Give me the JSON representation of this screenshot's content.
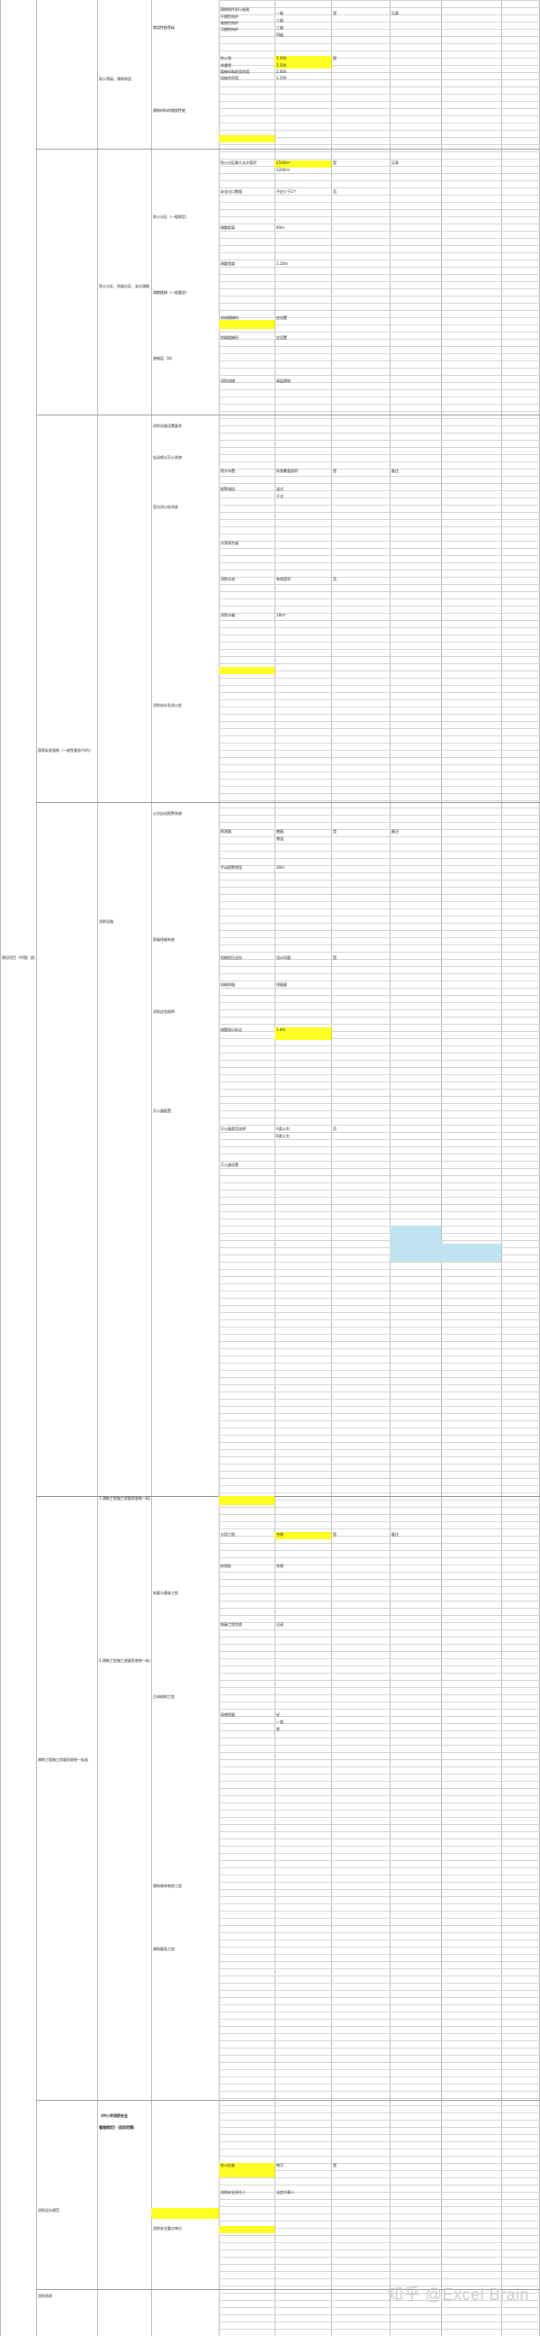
{
  "watermark": "知乎 @Excel Brain",
  "highlight_color": "#ffff24",
  "highlight_blue": "#bfe3ef",
  "col0": [
    {
      "text": "建设项目（中国）部分建筑",
      "row": 1060
    }
  ],
  "col1": [
    {
      "text": "国家标准强制（一般性要求/节约）",
      "row": 830
    },
    {
      "text": "建筑工程施工质量验收统一标准",
      "row": 1950
    },
    {
      "text": "消防设计规范",
      "row": 2450
    },
    {
      "text": "消防验收",
      "row": 2545
    }
  ],
  "col2": [
    {
      "text": "耐火等级、建筑构造",
      "row": 85
    },
    {
      "text": "防火分区、防烟分区、安全疏散",
      "row": 315
    },
    {
      "text": "消防设施",
      "row": 1020
    },
    {
      "text": "1 建筑工程施工质量验收统一标准",
      "row": 1660
    },
    {
      "text": "2 建筑工程施工质量验收统一标准",
      "row": 1840
    },
    {
      "text": "《中小学消防安全",
      "row": 2345
    },
    {
      "text": "管理规定》（适用范围）",
      "row": 2358
    }
  ],
  "col3": [
    {
      "text": "燃烧性能等级",
      "row": 28
    },
    {
      "text": "建筑材料的燃烧性能",
      "row": 120
    },
    {
      "text": "防火分区（一般规定）",
      "row": 238
    },
    {
      "text": "疏散楼梯（一般要求）",
      "row": 322
    },
    {
      "text": "避难层（间）",
      "row": 395
    },
    {
      "text": "消防设施设置要求",
      "row": 470
    },
    {
      "text": "自动喷水灭火系统",
      "row": 505
    },
    {
      "text": "室内消火栓系统",
      "row": 560
    },
    {
      "text": "消防给水及消火栓",
      "row": 780
    },
    {
      "text": "火灾自动报警系统",
      "row": 900
    },
    {
      "text": "防烟排烟系统",
      "row": 1040
    },
    {
      "text": "消防应急照明",
      "row": 1120
    },
    {
      "text": "灭火器配置",
      "row": 1230
    },
    {
      "text": "地基与基础工程",
      "row": 1765
    },
    {
      "text": "主体结构工程",
      "row": 1880
    },
    {
      "text": "建筑装饰装修工程",
      "row": 2090
    },
    {
      "text": "建筑屋面工程",
      "row": 2160
    },
    {
      "text": "消防安全重点单位",
      "row": 2470
    }
  ],
  "col4": [
    {
      "text": "建筑构件耐火极限",
      "row": 8
    },
    {
      "text": "不燃性构件",
      "row": 16
    },
    {
      "text": "难燃性构件",
      "row": 23
    },
    {
      "text": "可燃性构件",
      "row": 30
    },
    {
      "text": "防火墙",
      "row": 62
    },
    {
      "text": "承重墙",
      "row": 70
    },
    {
      "text": "楼梯间和前室的墙",
      "row": 77
    },
    {
      "text": "电梯井的墙",
      "row": 84
    },
    {
      "text": "防火分区最大允许面积",
      "row": 178
    },
    {
      "text": "安全出口数量",
      "row": 210
    },
    {
      "text": "疏散距离",
      "row": 250
    },
    {
      "text": "疏散宽度",
      "row": 290
    },
    {
      "text": "封闭楼梯间",
      "row": 350
    },
    {
      "text": "防烟楼梯间",
      "row": 372
    },
    {
      "text": "消防电梯",
      "row": 420
    },
    {
      "text": "喷头布置",
      "row": 520
    },
    {
      "text": "报警阀组",
      "row": 540
    },
    {
      "text": "水泵接合器",
      "row": 600
    },
    {
      "text": "消防水池",
      "row": 640
    },
    {
      "text": "消防水箱",
      "row": 680
    },
    {
      "text": "探测器",
      "row": 920
    },
    {
      "text": "手动报警按钮",
      "row": 960
    },
    {
      "text": "机械加压送风",
      "row": 1060
    },
    {
      "text": "机械排烟",
      "row": 1090
    },
    {
      "text": "疏散指示标志",
      "row": 1140
    },
    {
      "text": "灭火器类型选择",
      "row": 1250
    },
    {
      "text": "灭火器设置",
      "row": 1290
    },
    {
      "text": "分项工程",
      "row": 1700
    },
    {
      "text": "检验批",
      "row": 1735
    },
    {
      "text": "隐蔽工程验收",
      "row": 1800
    },
    {
      "text": "观感质量",
      "row": 1900
    },
    {
      "text": "防火检查",
      "row": 2400
    },
    {
      "text": "消防安全责任人",
      "row": 2430
    }
  ],
  "col5": [
    {
      "text": "一级",
      "row": 12
    },
    {
      "text": "二级",
      "row": 20
    },
    {
      "text": "三级",
      "row": 28
    },
    {
      "text": "四级",
      "row": 36
    },
    {
      "text": "3.00h",
      "row": 62
    },
    {
      "text": "2.50h",
      "row": 70
    },
    {
      "text": "2.00h",
      "row": 77
    },
    {
      "text": "1.50h",
      "row": 84
    },
    {
      "text": "2500m²",
      "row": 178
    },
    {
      "text": "1200m²",
      "row": 186
    },
    {
      "text": "不应少于2个",
      "row": 210
    },
    {
      "text": "40m",
      "row": 250
    },
    {
      "text": "1.10m",
      "row": 290
    },
    {
      "text": "应设置",
      "row": 350
    },
    {
      "text": "应设置",
      "row": 372
    },
    {
      "text": "高层建筑",
      "row": 420
    },
    {
      "text": "标准覆盖面积",
      "row": 520
    },
    {
      "text": "湿式",
      "row": 540
    },
    {
      "text": "干式",
      "row": 548
    },
    {
      "text": "有效容积",
      "row": 640
    },
    {
      "text": "18m³",
      "row": 680
    },
    {
      "text": "感烟",
      "row": 920
    },
    {
      "text": "感温",
      "row": 928
    },
    {
      "text": "30m",
      "row": 960
    },
    {
      "text": "设计风量",
      "row": 1060
    },
    {
      "text": "排烟量",
      "row": 1090
    },
    {
      "text": "1.0m",
      "row": 1140
    },
    {
      "text": "A类火灾",
      "row": 1250
    },
    {
      "text": "B类火灾",
      "row": 1258
    },
    {
      "text": "合格",
      "row": 1700
    },
    {
      "text": "合格",
      "row": 1735
    },
    {
      "text": "记录",
      "row": 1800
    },
    {
      "text": "好",
      "row": 1900
    },
    {
      "text": "一般",
      "row": 1908
    },
    {
      "text": "差",
      "row": 1916
    },
    {
      "text": "每月",
      "row": 2400
    },
    {
      "text": "法定代表人",
      "row": 2430
    }
  ],
  "col6": [
    {
      "text": "是",
      "row": 12
    },
    {
      "text": "是",
      "row": 62
    },
    {
      "text": "是",
      "row": 178
    },
    {
      "text": "否",
      "row": 210
    },
    {
      "text": "是",
      "row": 520
    },
    {
      "text": "否",
      "row": 640
    },
    {
      "text": "是",
      "row": 920
    },
    {
      "text": "是",
      "row": 1060
    },
    {
      "text": "否",
      "row": 1250
    },
    {
      "text": "是",
      "row": 1700
    },
    {
      "text": "是",
      "row": 2400
    }
  ],
  "col7": [
    {
      "text": "见表",
      "row": 12
    },
    {
      "text": "见表",
      "row": 178
    },
    {
      "text": "备注",
      "row": 520
    },
    {
      "text": "备注",
      "row": 920
    },
    {
      "text": "备注",
      "row": 1700
    }
  ]
}
